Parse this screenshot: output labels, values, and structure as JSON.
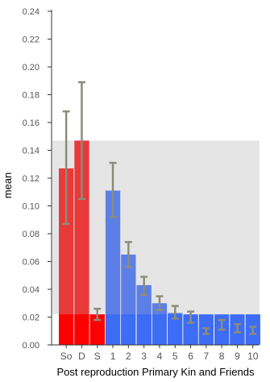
{
  "chart_data": {
    "type": "bar",
    "xlabel": "Post reproduction Primary Kin and Friends",
    "ylabel": "mean",
    "ylim": [
      0,
      0.24
    ],
    "yticks": [
      0.0,
      0.02,
      0.04,
      0.06,
      0.08,
      0.1,
      0.12,
      0.14,
      0.16,
      0.18,
      0.2,
      0.22,
      0.24
    ],
    "ytick_labels": [
      "0.00",
      "0.02",
      "0.04",
      "0.06",
      "0.08",
      "0.10",
      "0.12",
      "0.14",
      "0.16",
      "0.18",
      "0.20",
      "0.22",
      "0.24"
    ],
    "categories": [
      "So",
      "D",
      "S",
      "1",
      "2",
      "3",
      "4",
      "5",
      "6",
      "7",
      "8",
      "9",
      "10"
    ],
    "values": [
      0.127,
      0.147,
      0.022,
      0.111,
      0.065,
      0.043,
      0.03,
      0.023,
      0.02,
      0.01,
      0.014,
      0.012,
      0.01
    ],
    "error_low": [
      0.087,
      0.105,
      0.018,
      0.092,
      0.056,
      0.036,
      0.025,
      0.019,
      0.016,
      0.008,
      0.011,
      0.009,
      0.008
    ],
    "error_high": [
      0.168,
      0.189,
      0.026,
      0.131,
      0.074,
      0.049,
      0.035,
      0.028,
      0.024,
      0.012,
      0.018,
      0.015,
      0.013
    ],
    "bar_colors": [
      "#e83a3a",
      "#e83a3a",
      "#e83a3a",
      "#5b7fe6",
      "#5b7fe6",
      "#5b7fe6",
      "#5b7fe6",
      "#5b7fe6",
      "#5b7fe6",
      "#5b7fe6",
      "#5b7fe6",
      "#5b7fe6",
      "#5b7fe6"
    ],
    "reference_bands": [
      {
        "ymin": 0,
        "ymax": 0.147,
        "color": "#e5e5e5"
      },
      {
        "ymin": 0,
        "ymax": 0.022,
        "color": "#ffffff"
      }
    ],
    "baseline_band": {
      "ymax": 0.022,
      "red_color": "#ff0000",
      "blue_color": "#3d6cf5"
    },
    "error_bar_color": "#8c8c7a",
    "grid": false,
    "legend": "none"
  }
}
